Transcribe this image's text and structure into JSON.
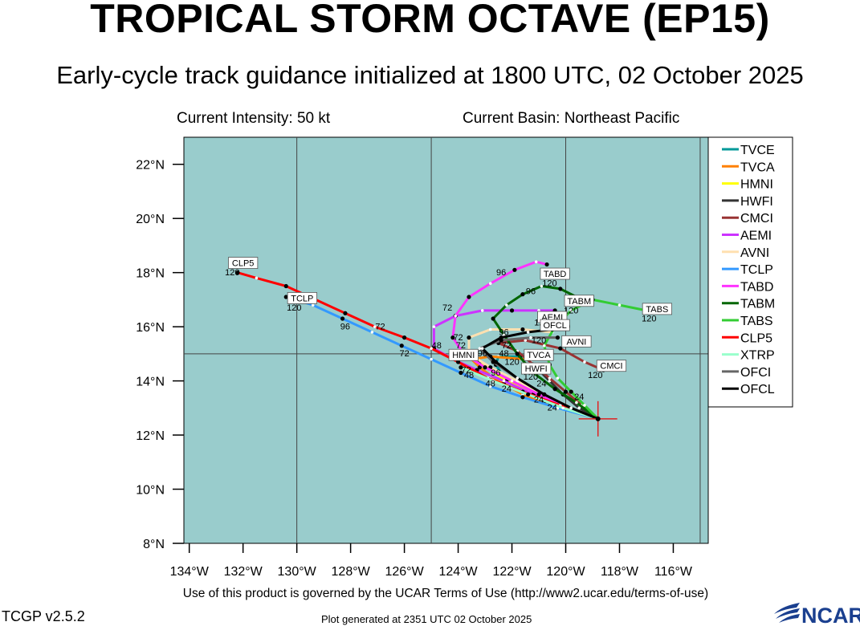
{
  "header": {
    "title": "TROPICAL STORM OCTAVE (EP15)",
    "subtitle": "Early-cycle track guidance initialized at 1800 UTC, 02 October 2025",
    "intensity": "Current Intensity: 50 kt",
    "basin": "Current Basin: Northeast Pacific"
  },
  "footer": {
    "terms": "Use of this product is governed by the UCAR Terms of Use (http://www2.ucar.edu/terms-of-use)",
    "version": "TCGP v2.5.2",
    "generated": "Plot generated at 2351 UTC   02 October 2025",
    "logo_text": "NCAR"
  },
  "chart_data": {
    "type": "map",
    "projection": "lat-lon",
    "xlim": [
      -134.2,
      -114.7
    ],
    "ylim": [
      8,
      23
    ],
    "x_ticks": [
      -134,
      -132,
      -130,
      -128,
      -126,
      -124,
      -122,
      -120,
      -118,
      -116
    ],
    "x_tick_labels": [
      "134°W",
      "132°W",
      "130°W",
      "128°W",
      "126°W",
      "124°W",
      "122°W",
      "120°W",
      "118°W",
      "116°W"
    ],
    "y_ticks": [
      8,
      10,
      12,
      14,
      16,
      18,
      20,
      22
    ],
    "y_tick_labels": [
      "8°N",
      "10°N",
      "12°N",
      "14°N",
      "16°N",
      "18°N",
      "20°N",
      "22°N"
    ],
    "gridlines_lon": [
      -130,
      -125,
      -120,
      -115
    ],
    "gridlines_lat": [
      15
    ],
    "ocean_color": "#99cccc",
    "legend_position": "right",
    "initial_position": {
      "lon": -118.8,
      "lat": 12.6
    },
    "series": [
      {
        "name": "TVCE",
        "color": "#009999",
        "points": [
          [
            -118.8,
            12.6
          ],
          [
            -119.8,
            12.9
          ],
          [
            -120.6,
            13.3
          ],
          [
            -121.3,
            13.6
          ],
          [
            -121.9,
            13.9
          ],
          [
            -122.4,
            14.3
          ],
          [
            -122.6,
            14.6
          ],
          [
            -122.5,
            14.9
          ],
          [
            -121.7,
            14.9
          ],
          [
            -120.9,
            14.9
          ]
        ],
        "labels": [
          {
            "text": "48",
            "lon": -122.3,
            "lat": 14.9
          },
          {
            "text": "120",
            "lon": -122.0,
            "lat": 14.6
          }
        ]
      },
      {
        "name": "TVCA",
        "color": "#ff8000",
        "points": [
          [
            -118.8,
            12.6
          ],
          [
            -119.9,
            12.9
          ],
          [
            -120.8,
            13.2
          ],
          [
            -121.6,
            13.5
          ],
          [
            -122.3,
            13.9
          ],
          [
            -122.8,
            14.2
          ],
          [
            -123.2,
            14.5
          ],
          [
            -123.5,
            14.8
          ],
          [
            -122.8,
            14.9
          ],
          [
            -121.5,
            14.8
          ]
        ],
        "box": {
          "text": "TVCA",
          "lon": -121.0,
          "lat": 14.9
        }
      },
      {
        "name": "HMNI",
        "color": "#ffff00",
        "points": [
          [
            -118.8,
            12.6
          ],
          [
            -119.7,
            12.9
          ],
          [
            -120.6,
            13.2
          ],
          [
            -121.4,
            13.6
          ],
          [
            -122.2,
            14.0
          ],
          [
            -122.8,
            14.4
          ],
          [
            -123.2,
            14.7
          ],
          [
            -123.5,
            15.0
          ]
        ],
        "box": {
          "text": "HMNI",
          "lon": -123.8,
          "lat": 14.9
        }
      },
      {
        "name": "HWFI",
        "color": "#333333",
        "points": [
          [
            -118.8,
            12.6
          ],
          [
            -119.5,
            13.0
          ],
          [
            -120.1,
            13.5
          ],
          [
            -120.6,
            14.0
          ],
          [
            -121.0,
            14.4
          ],
          [
            -121.3,
            14.7
          ],
          [
            -121.5,
            14.9
          ]
        ],
        "box": {
          "text": "HWFI",
          "lon": -121.1,
          "lat": 14.4
        },
        "labels": [
          {
            "text": "120",
            "lon": -121.3,
            "lat": 14.05
          }
        ]
      },
      {
        "name": "CMCI",
        "color": "#993333",
        "points": [
          [
            -118.8,
            12.6
          ],
          [
            -119.4,
            13.1
          ],
          [
            -120.0,
            13.6
          ],
          [
            -120.6,
            14.1
          ],
          [
            -121.2,
            14.6
          ],
          [
            -121.8,
            15.1
          ],
          [
            -122.5,
            15.4
          ],
          [
            -121.5,
            15.5
          ],
          [
            -120.2,
            15.2
          ],
          [
            -119.3,
            14.7
          ],
          [
            -118.6,
            14.4
          ]
        ],
        "box": {
          "text": "CMCI",
          "lon": -118.3,
          "lat": 14.5
        },
        "labels": [
          {
            "text": "120",
            "lon": -118.9,
            "lat": 14.1
          }
        ]
      },
      {
        "name": "AEMI",
        "color": "#cc33ff",
        "points": [
          [
            -118.8,
            12.6
          ],
          [
            -120.0,
            13.0
          ],
          [
            -121.2,
            13.5
          ],
          [
            -122.3,
            14.0
          ],
          [
            -123.3,
            14.4
          ],
          [
            -124.2,
            14.8
          ],
          [
            -124.9,
            15.2
          ],
          [
            -124.9,
            16.0
          ],
          [
            -124.1,
            16.4
          ],
          [
            -123.1,
            16.6
          ],
          [
            -122.0,
            16.6
          ],
          [
            -121.0,
            16.6
          ],
          [
            -120.4,
            16.6
          ]
        ],
        "box": {
          "text": "AEMI",
          "lon": -120.5,
          "lat": 16.3
        }
      },
      {
        "name": "AVNI",
        "color": "#ffe0b0",
        "points": [
          [
            -118.8,
            12.6
          ],
          [
            -119.8,
            13.0
          ],
          [
            -120.8,
            13.5
          ],
          [
            -121.8,
            14.0
          ],
          [
            -122.8,
            14.5
          ],
          [
            -123.6,
            15.0
          ],
          [
            -123.6,
            15.6
          ],
          [
            -122.8,
            15.9
          ],
          [
            -121.6,
            15.9
          ],
          [
            -120.5,
            15.8
          ]
        ],
        "box": {
          "text": "AVNI",
          "lon": -119.6,
          "lat": 15.4
        }
      },
      {
        "name": "TCLP",
        "color": "#3399ff",
        "points": [
          [
            -118.8,
            12.6
          ],
          [
            -120.3,
            13.0
          ],
          [
            -121.6,
            13.4
          ],
          [
            -122.8,
            13.8
          ],
          [
            -123.9,
            14.3
          ],
          [
            -125.0,
            14.8
          ],
          [
            -126.1,
            15.3
          ],
          [
            -127.2,
            15.8
          ],
          [
            -128.3,
            16.3
          ],
          [
            -129.4,
            16.8
          ],
          [
            -130.4,
            17.1
          ]
        ],
        "box": {
          "text": "TCLP",
          "lon": -129.8,
          "lat": 17.0
        },
        "labels": [
          {
            "text": "120",
            "lon": -130.1,
            "lat": 16.6
          },
          {
            "text": "72",
            "lon": -126.0,
            "lat": 14.9
          }
        ]
      },
      {
        "name": "TABD",
        "color": "#ff33ff",
        "points": [
          [
            -118.8,
            12.6
          ],
          [
            -119.9,
            13.0
          ],
          [
            -121.0,
            13.5
          ],
          [
            -122.0,
            14.0
          ],
          [
            -123.0,
            14.5
          ],
          [
            -123.8,
            15.0
          ],
          [
            -124.2,
            15.6
          ],
          [
            -124.1,
            16.4
          ],
          [
            -123.6,
            17.1
          ],
          [
            -122.8,
            17.6
          ],
          [
            -121.9,
            18.1
          ],
          [
            -121.1,
            18.4
          ],
          [
            -120.7,
            18.3
          ]
        ],
        "box": {
          "text": "TABD",
          "lon": -120.4,
          "lat": 17.9
        },
        "labels": [
          {
            "text": "96",
            "lon": -122.4,
            "lat": 17.9
          },
          {
            "text": "120",
            "lon": -120.6,
            "lat": 17.5
          },
          {
            "text": "72",
            "lon": -124.4,
            "lat": 16.6
          }
        ]
      },
      {
        "name": "TABM",
        "color": "#006600",
        "points": [
          [
            -118.8,
            12.6
          ],
          [
            -119.6,
            13.2
          ],
          [
            -120.4,
            13.7
          ],
          [
            -121.2,
            14.3
          ],
          [
            -121.8,
            15.0
          ],
          [
            -122.3,
            15.7
          ],
          [
            -122.7,
            16.3
          ],
          [
            -122.2,
            16.8
          ],
          [
            -121.6,
            17.2
          ],
          [
            -120.9,
            17.5
          ],
          [
            -120.2,
            17.4
          ],
          [
            -119.6,
            17.1
          ]
        ],
        "box": {
          "text": "TABM",
          "lon": -119.5,
          "lat": 16.9
        },
        "labels": [
          {
            "text": "96",
            "lon": -121.3,
            "lat": 17.2
          },
          {
            "text": "120",
            "lon": -119.8,
            "lat": 16.5
          }
        ]
      },
      {
        "name": "TABS",
        "color": "#33cc33",
        "points": [
          [
            -118.8,
            12.6
          ],
          [
            -119.3,
            13.1
          ],
          [
            -119.8,
            13.6
          ],
          [
            -120.3,
            14.1
          ],
          [
            -120.6,
            14.6
          ],
          [
            -120.8,
            15.3
          ],
          [
            -120.4,
            16.0
          ],
          [
            -119.8,
            16.6
          ],
          [
            -119.0,
            17.0
          ],
          [
            -118.0,
            16.8
          ],
          [
            -117.0,
            16.6
          ]
        ],
        "box": {
          "text": "TABS",
          "lon": -116.6,
          "lat": 16.6
        },
        "labels": [
          {
            "text": "120",
            "lon": -116.9,
            "lat": 16.2
          }
        ]
      },
      {
        "name": "CLP5",
        "color": "#ff0000",
        "points": [
          [
            -118.8,
            12.6
          ],
          [
            -120.2,
            13.1
          ],
          [
            -121.6,
            13.6
          ],
          [
            -122.9,
            14.1
          ],
          [
            -124.0,
            14.7
          ],
          [
            -125.0,
            15.2
          ],
          [
            -126.0,
            15.6
          ],
          [
            -127.1,
            16.0
          ],
          [
            -128.2,
            16.5
          ],
          [
            -129.3,
            17.0
          ],
          [
            -130.4,
            17.5
          ],
          [
            -131.5,
            17.8
          ],
          [
            -132.2,
            18.0
          ]
        ],
        "box": {
          "text": "CLP5",
          "lon": -132.0,
          "lat": 18.3
        },
        "labels": [
          {
            "text": "120",
            "lon": -132.4,
            "lat": 17.9
          },
          {
            "text": "96",
            "lon": -128.2,
            "lat": 15.9
          },
          {
            "text": "72",
            "lon": -126.9,
            "lat": 15.9
          }
        ]
      },
      {
        "name": "XTRP",
        "color": "#99ffcc",
        "points": [
          [
            -118.8,
            12.6
          ],
          [
            -120.1,
            13.0
          ],
          [
            -121.4,
            13.5
          ],
          [
            -122.7,
            14.0
          ],
          [
            -123.9,
            14.5
          ]
        ]
      },
      {
        "name": "OFCI",
        "color": "#666666",
        "points": [
          [
            -118.8,
            12.6
          ],
          [
            -119.8,
            13.0
          ],
          [
            -120.8,
            13.5
          ],
          [
            -121.8,
            14.1
          ],
          [
            -122.7,
            14.7
          ],
          [
            -123.2,
            15.2
          ],
          [
            -122.4,
            15.5
          ],
          [
            -121.3,
            15.6
          ],
          [
            -120.3,
            15.6
          ]
        ]
      },
      {
        "name": "OFCL",
        "color": "#000000",
        "points": [
          [
            -118.8,
            12.6
          ],
          [
            -119.8,
            13.0
          ],
          [
            -120.8,
            13.5
          ],
          [
            -121.8,
            14.1
          ],
          [
            -122.6,
            14.7
          ],
          [
            -123.1,
            15.2
          ],
          [
            -122.4,
            15.6
          ],
          [
            -121.4,
            15.8
          ],
          [
            -120.5,
            15.9
          ]
        ],
        "box": {
          "text": "OFCL",
          "lon": -120.4,
          "lat": 16.0
        },
        "labels": [
          {
            "text": "120",
            "lon": -120.1,
            "lat": 15.9
          }
        ]
      }
    ],
    "extra_labels": [
      {
        "text": "24",
        "lon": -121.0,
        "lat": 13.2
      },
      {
        "text": "24",
        "lon": -120.5,
        "lat": 12.9
      },
      {
        "text": "24",
        "lon": -119.5,
        "lat": 13.3
      },
      {
        "text": "24",
        "lon": -122.2,
        "lat": 13.6
      },
      {
        "text": "24",
        "lon": -120.9,
        "lat": 13.8
      },
      {
        "text": "48",
        "lon": -122.8,
        "lat": 13.8
      },
      {
        "text": "48",
        "lon": -123.6,
        "lat": 14.1
      },
      {
        "text": "96",
        "lon": -122.6,
        "lat": 14.2
      },
      {
        "text": "96",
        "lon": -123.1,
        "lat": 14.9
      },
      {
        "text": "72",
        "lon": -122.2,
        "lat": 15.2
      },
      {
        "text": "72",
        "lon": -124.0,
        "lat": 15.5
      },
      {
        "text": "72",
        "lon": -123.9,
        "lat": 15.2
      },
      {
        "text": "48",
        "lon": -124.8,
        "lat": 15.2
      },
      {
        "text": "96",
        "lon": -122.3,
        "lat": 15.7
      },
      {
        "text": "120",
        "lon": -121.0,
        "lat": 15.4
      },
      {
        "text": "48",
        "lon": -123.9,
        "lat": 14.8
      },
      {
        "text": "72",
        "lon": -123.7,
        "lat": 14.3
      },
      {
        "text": "120",
        "lon": -120.9,
        "lat": 16.05
      }
    ]
  },
  "legend": {
    "items": [
      {
        "name": "TVCE",
        "color": "#009999"
      },
      {
        "name": "TVCA",
        "color": "#ff8000"
      },
      {
        "name": "HMNI",
        "color": "#ffff00"
      },
      {
        "name": "HWFI",
        "color": "#333333"
      },
      {
        "name": "CMCI",
        "color": "#993333"
      },
      {
        "name": "AEMI",
        "color": "#cc33ff"
      },
      {
        "name": "AVNI",
        "color": "#ffe0b0"
      },
      {
        "name": "TCLP",
        "color": "#3399ff"
      },
      {
        "name": "TABD",
        "color": "#ff33ff"
      },
      {
        "name": "TABM",
        "color": "#006600"
      },
      {
        "name": "TABS",
        "color": "#33cc33"
      },
      {
        "name": "CLP5",
        "color": "#ff0000"
      },
      {
        "name": "XTRP",
        "color": "#99ffcc"
      },
      {
        "name": "OFCI",
        "color": "#666666"
      },
      {
        "name": "OFCL",
        "color": "#000000"
      }
    ]
  }
}
